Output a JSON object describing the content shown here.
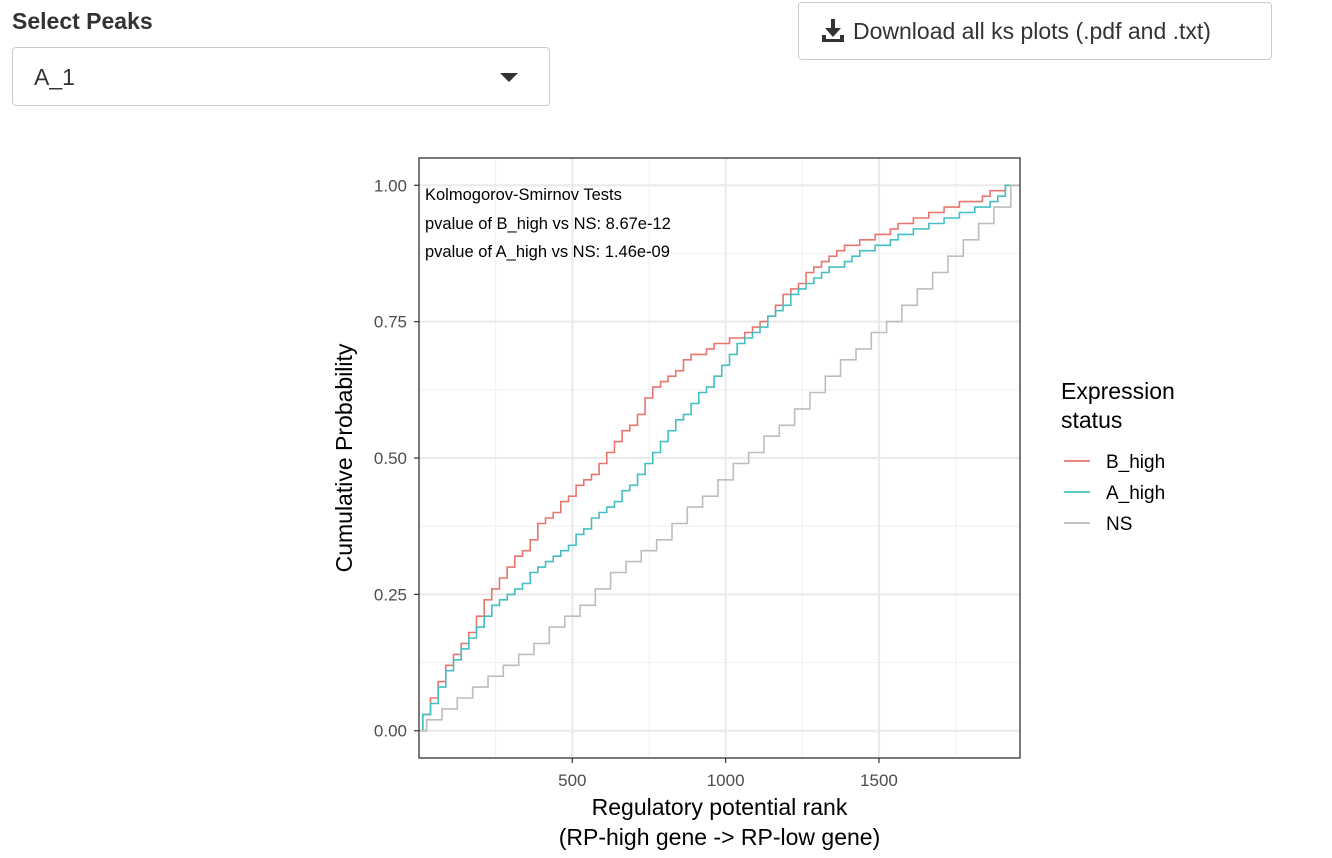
{
  "select": {
    "label": "Select Peaks",
    "value": "A_1"
  },
  "download": {
    "label": "Download all ks plots (.pdf and .txt)",
    "icon": "download-icon"
  },
  "chart_data": {
    "type": "line",
    "title": "",
    "xlabel_line1": "Regulatory potential rank",
    "xlabel_line2": "(RP-high gene -> RP-low gene)",
    "ylabel": "Cumulative Probability",
    "xlim": [
      0,
      1960
    ],
    "ylim": [
      -0.05,
      1.05
    ],
    "x_ticks": [
      500,
      1000,
      1500
    ],
    "x_tick_labels": [
      "500",
      "1000",
      "1500"
    ],
    "y_ticks": [
      0,
      0.25,
      0.5,
      0.75,
      1.0
    ],
    "y_tick_labels": [
      "0.00",
      "0.25",
      "0.50",
      "0.75",
      "1.00"
    ],
    "grid": true,
    "annotations": [
      "Kolmogorov-Smirnov Tests",
      "pvalue of B_high vs NS: 8.67e-12",
      "pvalue of A_high vs NS: 1.46e-09"
    ],
    "legend": {
      "title_line1": "Expression",
      "title_line2": "status",
      "placement": "right"
    },
    "series": [
      {
        "name": "B_high",
        "color": "#E8766F",
        "x": [
          0,
          25,
          50,
          75,
          100,
          125,
          150,
          175,
          200,
          225,
          250,
          275,
          300,
          325,
          350,
          375,
          400,
          425,
          450,
          475,
          500,
          525,
          550,
          575,
          600,
          625,
          650,
          675,
          700,
          725,
          750,
          775,
          800,
          825,
          850,
          875,
          900,
          925,
          950,
          975,
          1000,
          1025,
          1050,
          1075,
          1100,
          1125,
          1150,
          1175,
          1200,
          1225,
          1250,
          1275,
          1300,
          1325,
          1350,
          1375,
          1400,
          1425,
          1450,
          1475,
          1500,
          1525,
          1550,
          1575,
          1600,
          1625,
          1650,
          1675,
          1700,
          1725,
          1750,
          1775,
          1800,
          1825,
          1850,
          1875,
          1900,
          1925,
          1960
        ],
        "y": [
          0.0,
          0.03,
          0.06,
          0.09,
          0.12,
          0.14,
          0.16,
          0.18,
          0.21,
          0.24,
          0.26,
          0.28,
          0.3,
          0.32,
          0.33,
          0.35,
          0.38,
          0.39,
          0.4,
          0.42,
          0.43,
          0.45,
          0.46,
          0.47,
          0.49,
          0.51,
          0.53,
          0.55,
          0.56,
          0.58,
          0.61,
          0.63,
          0.64,
          0.65,
          0.66,
          0.68,
          0.69,
          0.69,
          0.7,
          0.71,
          0.71,
          0.72,
          0.72,
          0.73,
          0.74,
          0.75,
          0.76,
          0.78,
          0.8,
          0.81,
          0.82,
          0.84,
          0.85,
          0.86,
          0.87,
          0.88,
          0.89,
          0.89,
          0.9,
          0.9,
          0.91,
          0.91,
          0.92,
          0.93,
          0.93,
          0.94,
          0.94,
          0.95,
          0.95,
          0.96,
          0.96,
          0.97,
          0.97,
          0.97,
          0.98,
          0.99,
          0.99,
          1.0,
          1.0
        ]
      },
      {
        "name": "A_high",
        "color": "#45BFC2",
        "x": [
          0,
          25,
          50,
          75,
          100,
          125,
          150,
          175,
          200,
          225,
          250,
          275,
          300,
          325,
          350,
          375,
          400,
          425,
          450,
          475,
          500,
          525,
          550,
          575,
          600,
          625,
          650,
          675,
          700,
          725,
          750,
          775,
          800,
          825,
          850,
          875,
          900,
          925,
          950,
          975,
          1000,
          1025,
          1050,
          1075,
          1100,
          1125,
          1150,
          1175,
          1200,
          1225,
          1250,
          1275,
          1300,
          1325,
          1350,
          1375,
          1400,
          1425,
          1450,
          1475,
          1500,
          1525,
          1550,
          1575,
          1600,
          1625,
          1650,
          1675,
          1700,
          1725,
          1750,
          1775,
          1800,
          1825,
          1850,
          1875,
          1900,
          1925,
          1960
        ],
        "y": [
          0.0,
          0.03,
          0.05,
          0.08,
          0.11,
          0.13,
          0.15,
          0.17,
          0.19,
          0.21,
          0.23,
          0.24,
          0.25,
          0.26,
          0.27,
          0.29,
          0.3,
          0.31,
          0.32,
          0.33,
          0.34,
          0.36,
          0.37,
          0.39,
          0.4,
          0.41,
          0.42,
          0.44,
          0.45,
          0.47,
          0.49,
          0.51,
          0.53,
          0.55,
          0.57,
          0.58,
          0.6,
          0.62,
          0.63,
          0.65,
          0.67,
          0.69,
          0.71,
          0.72,
          0.73,
          0.74,
          0.76,
          0.77,
          0.78,
          0.8,
          0.81,
          0.82,
          0.83,
          0.84,
          0.85,
          0.85,
          0.86,
          0.87,
          0.88,
          0.88,
          0.89,
          0.89,
          0.9,
          0.91,
          0.91,
          0.92,
          0.92,
          0.93,
          0.93,
          0.94,
          0.94,
          0.95,
          0.95,
          0.96,
          0.96,
          0.97,
          0.98,
          1.0,
          1.0
        ]
      },
      {
        "name": "NS",
        "color": "#BDBDBD",
        "x": [
          0,
          50,
          100,
          150,
          200,
          250,
          300,
          350,
          400,
          450,
          500,
          550,
          600,
          650,
          700,
          750,
          800,
          850,
          900,
          950,
          1000,
          1050,
          1100,
          1150,
          1200,
          1250,
          1300,
          1350,
          1400,
          1450,
          1500,
          1550,
          1600,
          1650,
          1700,
          1750,
          1800,
          1850,
          1900,
          1960
        ],
        "y": [
          0.0,
          0.02,
          0.04,
          0.06,
          0.08,
          0.1,
          0.12,
          0.14,
          0.16,
          0.19,
          0.21,
          0.23,
          0.26,
          0.29,
          0.31,
          0.33,
          0.35,
          0.38,
          0.41,
          0.43,
          0.46,
          0.49,
          0.51,
          0.54,
          0.56,
          0.59,
          0.62,
          0.65,
          0.68,
          0.7,
          0.73,
          0.75,
          0.78,
          0.81,
          0.84,
          0.87,
          0.9,
          0.93,
          0.96,
          1.0
        ]
      }
    ]
  }
}
